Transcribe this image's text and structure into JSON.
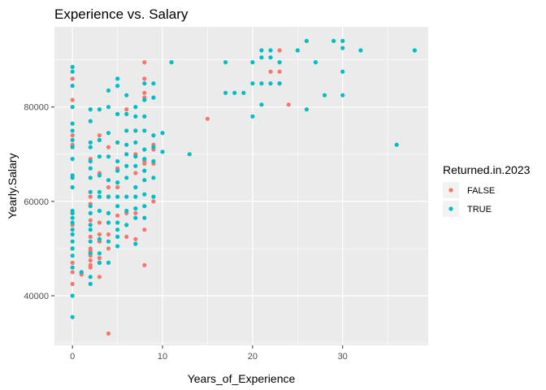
{
  "chart_data": {
    "type": "scatter",
    "title": "Experience vs. Salary",
    "xlabel": "Years_of_Experience",
    "ylabel": "Yearly.Salary",
    "xlim": [
      -2,
      39.5
    ],
    "ylim": [
      29500,
      97000
    ],
    "x_ticks": [
      0,
      10,
      20,
      30
    ],
    "x_tick_labels": [
      "0",
      "10",
      "20",
      "30"
    ],
    "y_ticks": [
      40000,
      60000,
      80000
    ],
    "y_tick_labels": [
      "40000",
      "60000",
      "80000"
    ],
    "grid": true,
    "legend": {
      "title": "Returned.in.2023",
      "position": "right"
    },
    "series": [
      {
        "name": "FALSE",
        "color": "#F8766D",
        "points": [
          [
            0,
            86000
          ],
          [
            0,
            81500
          ],
          [
            0,
            74000
          ],
          [
            0,
            72000
          ],
          [
            0,
            57500
          ],
          [
            0,
            55000
          ],
          [
            0,
            50000
          ],
          [
            0,
            47000
          ],
          [
            0,
            45000
          ],
          [
            0,
            42500
          ],
          [
            1,
            45000
          ],
          [
            1,
            44500
          ],
          [
            2,
            69000
          ],
          [
            2,
            61000
          ],
          [
            2,
            59500
          ],
          [
            2,
            56000
          ],
          [
            2,
            52500
          ],
          [
            2,
            50000
          ],
          [
            2,
            49500
          ],
          [
            2,
            49000
          ],
          [
            2,
            48500
          ],
          [
            2,
            47500
          ],
          [
            2,
            46500
          ],
          [
            2,
            46000
          ],
          [
            3,
            74000
          ],
          [
            3,
            66000
          ],
          [
            3,
            55500
          ],
          [
            3,
            53000
          ],
          [
            3,
            51500
          ],
          [
            3,
            48000
          ],
          [
            3,
            47000
          ],
          [
            3,
            44000
          ],
          [
            4,
            71500
          ],
          [
            4,
            63000
          ],
          [
            4,
            61000
          ],
          [
            4,
            53000
          ],
          [
            4,
            50000
          ],
          [
            4,
            32000
          ],
          [
            5,
            72500
          ],
          [
            5,
            67000
          ],
          [
            5,
            63000
          ],
          [
            5,
            57000
          ],
          [
            6,
            79500
          ],
          [
            6,
            57500
          ],
          [
            6,
            52500
          ],
          [
            7,
            75000
          ],
          [
            7,
            70000
          ],
          [
            7,
            66000
          ],
          [
            7,
            57500
          ],
          [
            7,
            52000
          ],
          [
            8,
            89500
          ],
          [
            8,
            86000
          ],
          [
            8,
            83000
          ],
          [
            8,
            82000
          ],
          [
            8,
            68500
          ],
          [
            8,
            68000
          ],
          [
            8,
            54000
          ],
          [
            8,
            46500
          ],
          [
            9,
            72000
          ],
          [
            9,
            71000
          ],
          [
            9,
            68000
          ],
          [
            9,
            60000
          ],
          [
            15,
            77500
          ],
          [
            22,
            87500
          ],
          [
            23,
            92000
          ],
          [
            23,
            87500
          ],
          [
            23,
            85000
          ],
          [
            24,
            80500
          ]
        ]
      },
      {
        "name": "TRUE",
        "color": "#00BFC4",
        "points": [
          [
            0,
            88500
          ],
          [
            0,
            87500
          ],
          [
            0,
            84500
          ],
          [
            0,
            80000
          ],
          [
            0,
            76500
          ],
          [
            0,
            75000
          ],
          [
            0,
            73000
          ],
          [
            0,
            71500
          ],
          [
            0,
            69000
          ],
          [
            0,
            65500
          ],
          [
            0,
            65000
          ],
          [
            0,
            63000
          ],
          [
            0,
            58000
          ],
          [
            0,
            57500
          ],
          [
            0,
            56500
          ],
          [
            0,
            55500
          ],
          [
            0,
            54000
          ],
          [
            0,
            53000
          ],
          [
            0,
            51500
          ],
          [
            0,
            50000
          ],
          [
            0,
            48500
          ],
          [
            0,
            46000
          ],
          [
            0,
            40000
          ],
          [
            0,
            35500
          ],
          [
            1,
            45000
          ],
          [
            2,
            79500
          ],
          [
            2,
            77000
          ],
          [
            2,
            72500
          ],
          [
            2,
            71500
          ],
          [
            2,
            68500
          ],
          [
            2,
            67000
          ],
          [
            2,
            65000
          ],
          [
            2,
            62000
          ],
          [
            2,
            59000
          ],
          [
            2,
            57500
          ],
          [
            2,
            55000
          ],
          [
            2,
            54000
          ],
          [
            2,
            51500
          ],
          [
            2,
            49000
          ],
          [
            2,
            44000
          ],
          [
            2,
            42500
          ],
          [
            3,
            79500
          ],
          [
            3,
            73000
          ],
          [
            3,
            69500
          ],
          [
            3,
            65500
          ],
          [
            3,
            62000
          ],
          [
            3,
            61000
          ],
          [
            3,
            58000
          ],
          [
            3,
            52000
          ],
          [
            3,
            49000
          ],
          [
            3,
            47000
          ],
          [
            4,
            83500
          ],
          [
            4,
            80000
          ],
          [
            4,
            74500
          ],
          [
            4,
            69500
          ],
          [
            4,
            64500
          ],
          [
            4,
            61000
          ],
          [
            4,
            57500
          ],
          [
            4,
            55500
          ],
          [
            4,
            51500
          ],
          [
            4,
            47000
          ],
          [
            5,
            86000
          ],
          [
            5,
            84500
          ],
          [
            5,
            78500
          ],
          [
            5,
            72500
          ],
          [
            5,
            68500
          ],
          [
            5,
            66500
          ],
          [
            5,
            64000
          ],
          [
            5,
            61000
          ],
          [
            5,
            59000
          ],
          [
            5,
            55500
          ],
          [
            5,
            54000
          ],
          [
            5,
            52500
          ],
          [
            5,
            50500
          ],
          [
            6,
            82500
          ],
          [
            6,
            78500
          ],
          [
            6,
            75000
          ],
          [
            6,
            72000
          ],
          [
            6,
            70000
          ],
          [
            6,
            67500
          ],
          [
            6,
            65000
          ],
          [
            6,
            61000
          ],
          [
            6,
            58000
          ],
          [
            6,
            55000
          ],
          [
            7,
            80000
          ],
          [
            7,
            78000
          ],
          [
            7,
            75000
          ],
          [
            7,
            72500
          ],
          [
            7,
            69500
          ],
          [
            7,
            67500
          ],
          [
            7,
            63000
          ],
          [
            7,
            61000
          ],
          [
            7,
            58500
          ],
          [
            7,
            56500
          ],
          [
            7,
            51000
          ],
          [
            8,
            85000
          ],
          [
            8,
            81500
          ],
          [
            8,
            78000
          ],
          [
            8,
            75000
          ],
          [
            8,
            71000
          ],
          [
            8,
            69000
          ],
          [
            8,
            66500
          ],
          [
            8,
            64500
          ],
          [
            8,
            61500
          ],
          [
            8,
            59000
          ],
          [
            8,
            56500
          ],
          [
            9,
            85000
          ],
          [
            9,
            82000
          ],
          [
            9,
            74000
          ],
          [
            9,
            71500
          ],
          [
            9,
            68500
          ],
          [
            9,
            65000
          ],
          [
            9,
            61000
          ],
          [
            10,
            74500
          ],
          [
            10,
            70500
          ],
          [
            11,
            89500
          ],
          [
            13,
            70000
          ],
          [
            17,
            89500
          ],
          [
            17,
            83000
          ],
          [
            18,
            83000
          ],
          [
            19,
            83000
          ],
          [
            20,
            89500
          ],
          [
            20,
            85000
          ],
          [
            20,
            78000
          ],
          [
            21,
            92000
          ],
          [
            21,
            90500
          ],
          [
            21,
            85000
          ],
          [
            21,
            80500
          ],
          [
            22,
            92000
          ],
          [
            22,
            90500
          ],
          [
            22,
            85000
          ],
          [
            23,
            89500
          ],
          [
            23,
            85000
          ],
          [
            25,
            92000
          ],
          [
            26,
            94000
          ],
          [
            26,
            79500
          ],
          [
            27,
            89500
          ],
          [
            28,
            82500
          ],
          [
            29,
            94000
          ],
          [
            30,
            94000
          ],
          [
            30,
            92500
          ],
          [
            30,
            87500
          ],
          [
            30,
            82500
          ],
          [
            32,
            92000
          ],
          [
            36,
            72000
          ],
          [
            38,
            92000
          ]
        ]
      }
    ]
  }
}
